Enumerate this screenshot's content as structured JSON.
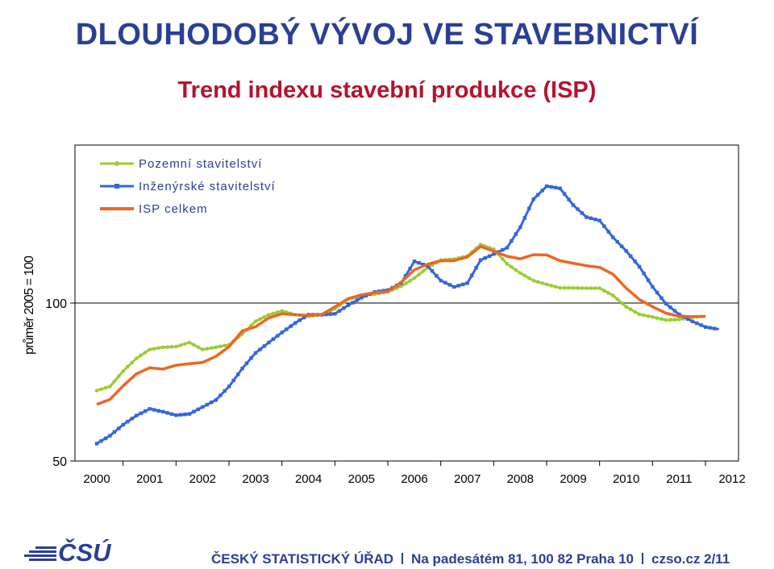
{
  "slide": {
    "title": "DLOUHODOBÝ VÝVOJ VE STAVEBNICTVÍ",
    "subtitle": "Trend indexu stavební produkce (ISP)"
  },
  "footer": {
    "org": "ČESKÝ STATISTICKÝ ÚŘAD",
    "address": "Na padesátém 81, 100 82 Praha 10",
    "web": "czso.cz",
    "page": "2/11",
    "logo_text": "ČSÚ",
    "brand_color": "#2a3f96"
  },
  "chart_data": {
    "type": "line",
    "ylabel": "průměr 2005 = 100",
    "ylim": [
      50,
      150
    ],
    "yticks": [
      50,
      100
    ],
    "reference_line": 100,
    "x_ticks": [
      "2000",
      "2001",
      "2002",
      "2003",
      "2004",
      "2005",
      "2006",
      "2007",
      "2008",
      "2009",
      "2010",
      "2011",
      "2012"
    ],
    "xlim": [
      2000,
      2012.55
    ],
    "legend_position": "top-left",
    "series": [
      {
        "name": "Pozemní stavitelství",
        "color": "#9acd32",
        "marker": "circle",
        "points": [
          [
            2000,
            72.3
          ],
          [
            2000.25,
            73.6
          ],
          [
            2000.5,
            78.5
          ],
          [
            2000.75,
            82.5
          ],
          [
            2001,
            85.3
          ],
          [
            2001.25,
            86
          ],
          [
            2001.5,
            86.2
          ],
          [
            2001.75,
            87.5
          ],
          [
            2002,
            85.3
          ],
          [
            2002.25,
            86
          ],
          [
            2002.5,
            86.8
          ],
          [
            2002.75,
            90.2
          ],
          [
            2003,
            94.2
          ],
          [
            2003.25,
            96.3
          ],
          [
            2003.5,
            97.5
          ],
          [
            2003.75,
            96.3
          ],
          [
            2004,
            95.8
          ],
          [
            2004.25,
            96.3
          ],
          [
            2004.5,
            98.2
          ],
          [
            2004.75,
            101.2
          ],
          [
            2005,
            102.4
          ],
          [
            2005.25,
            102.8
          ],
          [
            2005.5,
            103.6
          ],
          [
            2005.75,
            105.3
          ],
          [
            2006,
            107.9
          ],
          [
            2006.25,
            111.2
          ],
          [
            2006.5,
            113.6
          ],
          [
            2006.75,
            113.9
          ],
          [
            2007,
            114.9
          ],
          [
            2007.25,
            118.5
          ],
          [
            2007.5,
            117
          ],
          [
            2007.75,
            112.4
          ],
          [
            2008,
            109.5
          ],
          [
            2008.25,
            107.1
          ],
          [
            2008.5,
            105.9
          ],
          [
            2008.75,
            104.8
          ],
          [
            2009,
            104.8
          ],
          [
            2009.25,
            104.7
          ],
          [
            2009.5,
            104.7
          ],
          [
            2009.75,
            102.4
          ],
          [
            2010,
            98.8
          ],
          [
            2010.25,
            96.4
          ],
          [
            2010.5,
            95.6
          ],
          [
            2010.75,
            94.6
          ],
          [
            2011,
            94.8
          ],
          [
            2011.25,
            95.5
          ],
          [
            2011.5,
            95.8
          ]
        ]
      },
      {
        "name": "Inženýrské stavitelství",
        "color": "#3366dd",
        "marker": "square",
        "points": [
          [
            2000,
            55.5
          ],
          [
            2000.25,
            58
          ],
          [
            2000.5,
            61.5
          ],
          [
            2000.75,
            64.4
          ],
          [
            2001,
            66.5
          ],
          [
            2001.25,
            65.6
          ],
          [
            2001.5,
            64.5
          ],
          [
            2001.75,
            64.9
          ],
          [
            2002,
            67.1
          ],
          [
            2002.25,
            69.3
          ],
          [
            2002.5,
            73.6
          ],
          [
            2002.75,
            79.3
          ],
          [
            2003,
            84.2
          ],
          [
            2003.25,
            87.5
          ],
          [
            2003.5,
            90.7
          ],
          [
            2003.75,
            93.7
          ],
          [
            2004,
            96.3
          ],
          [
            2004.25,
            96.3
          ],
          [
            2004.5,
            96.6
          ],
          [
            2004.75,
            99.3
          ],
          [
            2005,
            101.7
          ],
          [
            2005.25,
            103.5
          ],
          [
            2005.5,
            104.1
          ],
          [
            2005.75,
            106.3
          ],
          [
            2006,
            113.2
          ],
          [
            2006.25,
            111.7
          ],
          [
            2006.5,
            107.1
          ],
          [
            2006.75,
            105.1
          ],
          [
            2007,
            106.3
          ],
          [
            2007.25,
            113.6
          ],
          [
            2007.5,
            115.5
          ],
          [
            2007.75,
            117.5
          ],
          [
            2008,
            124
          ],
          [
            2008.25,
            132.9
          ],
          [
            2008.5,
            137
          ],
          [
            2008.75,
            136.3
          ],
          [
            2009,
            131
          ],
          [
            2009.25,
            127.2
          ],
          [
            2009.5,
            126.1
          ],
          [
            2009.75,
            120.8
          ],
          [
            2010,
            116.5
          ],
          [
            2010.25,
            111.5
          ],
          [
            2010.5,
            105.1
          ],
          [
            2010.75,
            99.8
          ],
          [
            2011,
            96.4
          ],
          [
            2011.25,
            94.2
          ],
          [
            2011.5,
            92.4
          ],
          [
            2011.75,
            91.7
          ]
        ]
      },
      {
        "name": "ISP celkem",
        "color": "#ee6622",
        "marker": "none",
        "points": [
          [
            2000,
            67.9
          ],
          [
            2000.25,
            69.5
          ],
          [
            2000.5,
            73.8
          ],
          [
            2000.75,
            77.6
          ],
          [
            2001,
            79.5
          ],
          [
            2001.25,
            79.1
          ],
          [
            2001.5,
            80.3
          ],
          [
            2001.75,
            80.8
          ],
          [
            2002,
            81.2
          ],
          [
            2002.25,
            83.1
          ],
          [
            2002.5,
            86.2
          ],
          [
            2002.75,
            91.2
          ],
          [
            2003,
            92.5
          ],
          [
            2003.25,
            95.3
          ],
          [
            2003.5,
            96.6
          ],
          [
            2003.75,
            96.3
          ],
          [
            2004,
            96.1
          ],
          [
            2004.25,
            96.4
          ],
          [
            2004.5,
            98.8
          ],
          [
            2004.75,
            101.4
          ],
          [
            2005,
            102.6
          ],
          [
            2005.25,
            103.3
          ],
          [
            2005.5,
            103.6
          ],
          [
            2005.75,
            106.6
          ],
          [
            2006,
            110.5
          ],
          [
            2006.25,
            112.3
          ],
          [
            2006.5,
            113.4
          ],
          [
            2006.75,
            113.4
          ],
          [
            2007,
            114.6
          ],
          [
            2007.25,
            117.9
          ],
          [
            2007.5,
            116.4
          ],
          [
            2007.75,
            114.8
          ],
          [
            2008,
            114
          ],
          [
            2008.25,
            115.3
          ],
          [
            2008.5,
            115.2
          ],
          [
            2008.75,
            113.4
          ],
          [
            2009,
            112.6
          ],
          [
            2009.25,
            111.8
          ],
          [
            2009.5,
            111.3
          ],
          [
            2009.75,
            109.1
          ],
          [
            2010,
            104.7
          ],
          [
            2010.25,
            101.1
          ],
          [
            2010.5,
            98.8
          ],
          [
            2010.75,
            96.8
          ],
          [
            2011,
            95.8
          ],
          [
            2011.25,
            95.7
          ],
          [
            2011.5,
            95.8
          ]
        ]
      }
    ]
  }
}
